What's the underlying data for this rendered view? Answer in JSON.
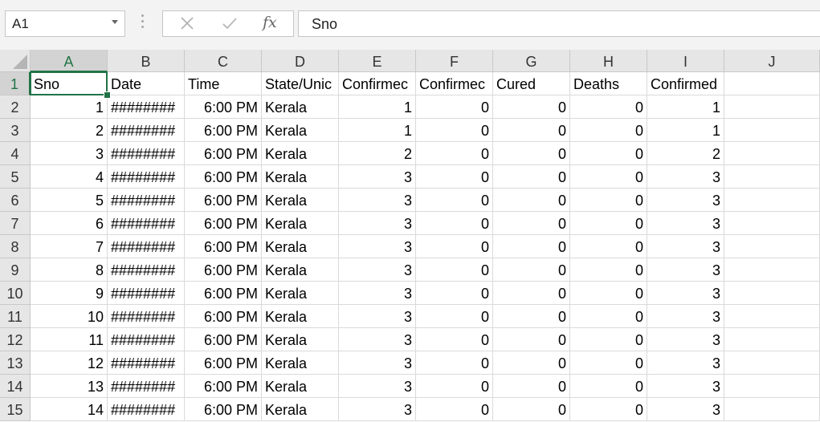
{
  "formula_bar": {
    "name_box": "A1",
    "formula": "Sno",
    "cancel_icon": "close-icon",
    "enter_icon": "check-icon",
    "fx_label": "fx"
  },
  "columns": [
    "A",
    "B",
    "C",
    "D",
    "E",
    "F",
    "G",
    "H",
    "I",
    "J"
  ],
  "rows": [
    {
      "n": "1",
      "c": [
        "Sno",
        "Date",
        "Time",
        "State/Unic",
        "Confirmec",
        "Confirmec",
        "Cured",
        "Deaths",
        "Confirmed",
        ""
      ]
    },
    {
      "n": "2",
      "c": [
        "1",
        "########",
        "6:00 PM",
        "Kerala",
        "1",
        "0",
        "0",
        "0",
        "1",
        ""
      ]
    },
    {
      "n": "3",
      "c": [
        "2",
        "########",
        "6:00 PM",
        "Kerala",
        "1",
        "0",
        "0",
        "0",
        "1",
        ""
      ]
    },
    {
      "n": "4",
      "c": [
        "3",
        "########",
        "6:00 PM",
        "Kerala",
        "2",
        "0",
        "0",
        "0",
        "2",
        ""
      ]
    },
    {
      "n": "5",
      "c": [
        "4",
        "########",
        "6:00 PM",
        "Kerala",
        "3",
        "0",
        "0",
        "0",
        "3",
        ""
      ]
    },
    {
      "n": "6",
      "c": [
        "5",
        "########",
        "6:00 PM",
        "Kerala",
        "3",
        "0",
        "0",
        "0",
        "3",
        ""
      ]
    },
    {
      "n": "7",
      "c": [
        "6",
        "########",
        "6:00 PM",
        "Kerala",
        "3",
        "0",
        "0",
        "0",
        "3",
        ""
      ]
    },
    {
      "n": "8",
      "c": [
        "7",
        "########",
        "6:00 PM",
        "Kerala",
        "3",
        "0",
        "0",
        "0",
        "3",
        ""
      ]
    },
    {
      "n": "9",
      "c": [
        "8",
        "########",
        "6:00 PM",
        "Kerala",
        "3",
        "0",
        "0",
        "0",
        "3",
        ""
      ]
    },
    {
      "n": "10",
      "c": [
        "9",
        "########",
        "6:00 PM",
        "Kerala",
        "3",
        "0",
        "0",
        "0",
        "3",
        ""
      ]
    },
    {
      "n": "11",
      "c": [
        "10",
        "########",
        "6:00 PM",
        "Kerala",
        "3",
        "0",
        "0",
        "0",
        "3",
        ""
      ]
    },
    {
      "n": "12",
      "c": [
        "11",
        "########",
        "6:00 PM",
        "Kerala",
        "3",
        "0",
        "0",
        "0",
        "3",
        ""
      ]
    },
    {
      "n": "13",
      "c": [
        "12",
        "########",
        "6:00 PM",
        "Kerala",
        "3",
        "0",
        "0",
        "0",
        "3",
        ""
      ]
    },
    {
      "n": "14",
      "c": [
        "13",
        "########",
        "6:00 PM",
        "Kerala",
        "3",
        "0",
        "0",
        "0",
        "3",
        ""
      ]
    },
    {
      "n": "15",
      "c": [
        "14",
        "########",
        "6:00 PM",
        "Kerala",
        "3",
        "0",
        "0",
        "0",
        "3",
        ""
      ]
    }
  ],
  "colors": {
    "accent": "#217346"
  }
}
